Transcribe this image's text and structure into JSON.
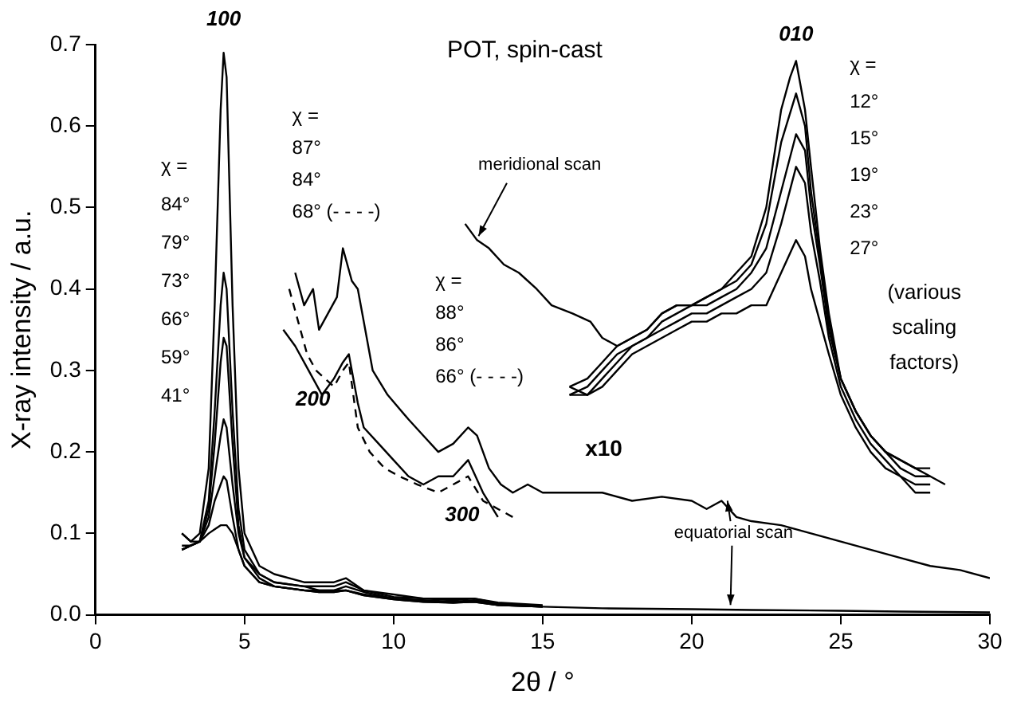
{
  "chart_data": {
    "type": "line",
    "title": "POT, spin-cast",
    "xlabel": "2θ / °",
    "ylabel": "X-ray intensity / a.u.",
    "xlim": [
      0,
      30
    ],
    "xticks": [
      0,
      5,
      10,
      15,
      20,
      25,
      30
    ],
    "ylim": [
      0,
      0.7
    ],
    "yticks": [
      {
        "value": 0,
        "label": "0.0"
      },
      0.1,
      0.2,
      0.3,
      0.4,
      0.5,
      0.6,
      0.7
    ],
    "grid": false,
    "legend": false,
    "marker": "none",
    "line_style": "solid",
    "series": [
      {
        "color": "#000000",
        "x": [
          2.9,
          3.2,
          3.5,
          3.8,
          4.0,
          4.2,
          4.3,
          4.4,
          4.6,
          4.8,
          5.0,
          5.5,
          6,
          7,
          7.5,
          8,
          8.4,
          9,
          10,
          11,
          12,
          12.7,
          13.5,
          15
        ],
        "values": [
          0.1,
          0.09,
          0.1,
          0.18,
          0.38,
          0.62,
          0.69,
          0.66,
          0.38,
          0.18,
          0.1,
          0.06,
          0.05,
          0.04,
          0.04,
          0.04,
          0.045,
          0.03,
          0.025,
          0.02,
          0.02,
          0.02,
          0.015,
          0.012
        ]
      },
      {
        "color": "#000000",
        "x": [
          2.9,
          3.2,
          3.5,
          3.8,
          4.0,
          4.2,
          4.3,
          4.4,
          4.6,
          4.8,
          5.0,
          5.5,
          6,
          7,
          7.5,
          8,
          8.4,
          9,
          10,
          11,
          12,
          12.7,
          13.5,
          15
        ],
        "values": [
          0.08,
          0.085,
          0.09,
          0.14,
          0.25,
          0.38,
          0.42,
          0.4,
          0.25,
          0.13,
          0.08,
          0.05,
          0.04,
          0.035,
          0.035,
          0.035,
          0.04,
          0.03,
          0.022,
          0.02,
          0.018,
          0.02,
          0.014,
          0.011
        ]
      },
      {
        "color": "#000000",
        "x": [
          2.9,
          3.2,
          3.5,
          3.8,
          4.0,
          4.2,
          4.3,
          4.4,
          4.6,
          4.8,
          5.0,
          5.5,
          6,
          7,
          7.5,
          8,
          8.4,
          9,
          10,
          11,
          12,
          12.7,
          13.5,
          15
        ],
        "values": [
          0.085,
          0.085,
          0.09,
          0.13,
          0.21,
          0.31,
          0.34,
          0.33,
          0.21,
          0.11,
          0.07,
          0.05,
          0.04,
          0.035,
          0.03,
          0.03,
          0.035,
          0.028,
          0.02,
          0.018,
          0.016,
          0.018,
          0.013,
          0.01
        ]
      },
      {
        "color": "#000000",
        "x": [
          2.9,
          3.2,
          3.5,
          3.8,
          4.0,
          4.2,
          4.3,
          4.4,
          4.6,
          4.8,
          5.0,
          5.5,
          6,
          7,
          7.5,
          8,
          8.4,
          9,
          10,
          11,
          12,
          12.7,
          13.5,
          15
        ],
        "values": [
          0.08,
          0.085,
          0.09,
          0.12,
          0.17,
          0.22,
          0.24,
          0.23,
          0.16,
          0.1,
          0.07,
          0.045,
          0.035,
          0.03,
          0.03,
          0.03,
          0.03,
          0.025,
          0.02,
          0.017,
          0.015,
          0.017,
          0.012,
          0.01
        ]
      },
      {
        "color": "#000000",
        "x": [
          2.9,
          3.2,
          3.5,
          3.8,
          4.0,
          4.2,
          4.3,
          4.4,
          4.6,
          4.8,
          5.0,
          5.5,
          6,
          7,
          7.5,
          8,
          8.4,
          9,
          10,
          11,
          12,
          12.7,
          13.5,
          15
        ],
        "values": [
          0.08,
          0.085,
          0.09,
          0.11,
          0.14,
          0.16,
          0.17,
          0.165,
          0.12,
          0.08,
          0.06,
          0.04,
          0.035,
          0.03,
          0.028,
          0.028,
          0.03,
          0.024,
          0.019,
          0.016,
          0.015,
          0.016,
          0.012,
          0.01
        ]
      },
      {
        "color": "#000000",
        "x": [
          2.9,
          3.2,
          3.5,
          3.8,
          4.0,
          4.2,
          4.3,
          4.4,
          4.6,
          4.8,
          5.0,
          5.5,
          6,
          7,
          7.5,
          8,
          8.4,
          9,
          10,
          11,
          12,
          12.7,
          13.5,
          15,
          17,
          20,
          22,
          25,
          27,
          30
        ],
        "values": [
          0.1,
          0.09,
          0.09,
          0.1,
          0.105,
          0.11,
          0.11,
          0.11,
          0.1,
          0.08,
          0.06,
          0.04,
          0.035,
          0.03,
          0.028,
          0.028,
          0.03,
          0.024,
          0.019,
          0.016,
          0.015,
          0.016,
          0.012,
          0.01,
          0.008,
          0.007,
          0.006,
          0.005,
          0.004,
          0.003
        ]
      },
      {
        "color": "#000000",
        "x": [
          6.7,
          7.0,
          7.3,
          7.5,
          7.8,
          8.1,
          8.3,
          8.6,
          8.8,
          9.0,
          9.3,
          9.8,
          10.5,
          11,
          11.5,
          12,
          12.5,
          12.8,
          13.2,
          13.6,
          14,
          14.5,
          15,
          16,
          17,
          18,
          19,
          20,
          20.5,
          21,
          21.5,
          22,
          23,
          24,
          25,
          26,
          27,
          28,
          29,
          30
        ],
        "values": [
          0.42,
          0.38,
          0.4,
          0.35,
          0.37,
          0.39,
          0.45,
          0.41,
          0.4,
          0.36,
          0.3,
          0.27,
          0.24,
          0.22,
          0.2,
          0.21,
          0.23,
          0.22,
          0.18,
          0.16,
          0.15,
          0.16,
          0.15,
          0.15,
          0.15,
          0.14,
          0.145,
          0.14,
          0.13,
          0.14,
          0.12,
          0.115,
          0.11,
          0.1,
          0.09,
          0.08,
          0.07,
          0.06,
          0.055,
          0.045
        ]
      },
      {
        "color": "#000000",
        "x": [
          6.3,
          6.7,
          7,
          7.3,
          7.6,
          8,
          8.3,
          8.5,
          8.8,
          9.0,
          9.5,
          10,
          10.5,
          11,
          11.5,
          12,
          12.5,
          13,
          13.5
        ],
        "values": [
          0.35,
          0.33,
          0.31,
          0.29,
          0.27,
          0.29,
          0.31,
          0.32,
          0.26,
          0.23,
          0.21,
          0.19,
          0.17,
          0.16,
          0.17,
          0.17,
          0.19,
          0.15,
          0.12
        ]
      },
      {
        "color": "#000000",
        "line_style": "dashed",
        "x": [
          6.5,
          6.8,
          7.1,
          7.4,
          7.7,
          8,
          8.3,
          8.5,
          8.8,
          9.2,
          9.7,
          10.2,
          10.8,
          11.5,
          12,
          12.5,
          13,
          13.5,
          14
        ],
        "values": [
          0.4,
          0.36,
          0.32,
          0.3,
          0.29,
          0.28,
          0.3,
          0.31,
          0.23,
          0.2,
          0.18,
          0.17,
          0.16,
          0.15,
          0.16,
          0.17,
          0.14,
          0.13,
          0.12
        ]
      },
      {
        "color": "#000000",
        "x": [
          12.4,
          12.8,
          13.2,
          13.7,
          14.2,
          14.8,
          15.3,
          16,
          16.6,
          17,
          17.5,
          18,
          18.5,
          19,
          19.5,
          20,
          20.5,
          21,
          21.5,
          22,
          22.5,
          23,
          23.3,
          23.5,
          23.8,
          24,
          24.3,
          24.6,
          25,
          25.5,
          26,
          26.5,
          27,
          27.5,
          28,
          28.5
        ],
        "values": [
          0.48,
          0.46,
          0.45,
          0.43,
          0.42,
          0.4,
          0.38,
          0.37,
          0.36,
          0.34,
          0.33,
          0.34,
          0.35,
          0.37,
          0.38,
          0.38,
          0.39,
          0.4,
          0.42,
          0.44,
          0.5,
          0.62,
          0.66,
          0.68,
          0.62,
          0.55,
          0.45,
          0.37,
          0.29,
          0.25,
          0.22,
          0.2,
          0.19,
          0.18,
          0.17,
          0.16
        ]
      },
      {
        "color": "#000000",
        "x": [
          15.9,
          16.5,
          17,
          17.5,
          18,
          18.5,
          19,
          19.5,
          20,
          20.5,
          21,
          21.5,
          22,
          22.5,
          23,
          23.5,
          23.8,
          24,
          24.3,
          24.6,
          25,
          25.5,
          26,
          26.5,
          27,
          27.5,
          28
        ],
        "values": [
          0.28,
          0.29,
          0.31,
          0.33,
          0.34,
          0.35,
          0.37,
          0.38,
          0.38,
          0.39,
          0.4,
          0.41,
          0.43,
          0.48,
          0.58,
          0.64,
          0.6,
          0.52,
          0.44,
          0.36,
          0.29,
          0.25,
          0.22,
          0.2,
          0.19,
          0.18,
          0.18
        ]
      },
      {
        "color": "#000000",
        "x": [
          15.9,
          16.5,
          17,
          17.5,
          18,
          18.5,
          19,
          19.5,
          20,
          20.5,
          21,
          21.5,
          22,
          22.5,
          23,
          23.5,
          23.8,
          24,
          24.3,
          24.6,
          25,
          25.5,
          26,
          26.5,
          27,
          27.5,
          28
        ],
        "values": [
          0.27,
          0.28,
          0.3,
          0.32,
          0.33,
          0.34,
          0.36,
          0.37,
          0.38,
          0.38,
          0.39,
          0.4,
          0.42,
          0.45,
          0.52,
          0.59,
          0.57,
          0.5,
          0.43,
          0.35,
          0.29,
          0.25,
          0.22,
          0.2,
          0.18,
          0.17,
          0.17
        ]
      },
      {
        "color": "#000000",
        "x": [
          15.9,
          16.5,
          17,
          17.5,
          18,
          18.5,
          19,
          19.5,
          20,
          20.5,
          21,
          21.5,
          22,
          22.5,
          23,
          23.5,
          23.8,
          24,
          24.3,
          24.6,
          25,
          25.5,
          26,
          26.5,
          27,
          27.5,
          28
        ],
        "values": [
          0.28,
          0.27,
          0.29,
          0.31,
          0.33,
          0.34,
          0.35,
          0.36,
          0.37,
          0.37,
          0.38,
          0.39,
          0.4,
          0.42,
          0.48,
          0.55,
          0.53,
          0.47,
          0.41,
          0.34,
          0.28,
          0.24,
          0.21,
          0.19,
          0.17,
          0.16,
          0.16
        ]
      },
      {
        "color": "#000000",
        "x": [
          15.9,
          16.5,
          17,
          17.5,
          18,
          18.5,
          19,
          19.5,
          20,
          20.5,
          21,
          21.5,
          22,
          22.5,
          23,
          23.5,
          23.8,
          24,
          24.3,
          24.6,
          25,
          25.5,
          26,
          26.5,
          27,
          27.5,
          28
        ],
        "values": [
          0.27,
          0.27,
          0.28,
          0.3,
          0.32,
          0.33,
          0.34,
          0.35,
          0.36,
          0.36,
          0.37,
          0.37,
          0.38,
          0.38,
          0.42,
          0.46,
          0.44,
          0.4,
          0.36,
          0.32,
          0.27,
          0.23,
          0.2,
          0.18,
          0.17,
          0.15,
          0.15
        ]
      }
    ],
    "annotations": [
      "100",
      "010",
      "200",
      "300",
      "x10",
      "χ =\n84°\n79°\n73°\n66°\n59°\n41°",
      "χ =\n87°\n84°\n68° (- - - -)",
      "χ =\n88°\n86°\n66° (- - - -)",
      "χ =\n12°\n15°\n19°\n23°\n27°",
      "(various\nscaling\nfactors)",
      {
        "text": "meridional scan",
        "x": 12.85,
        "y": 0.465
      },
      {
        "text": "equatorial scan",
        "x": 21.3,
        "y": 0.012
      }
    ]
  }
}
